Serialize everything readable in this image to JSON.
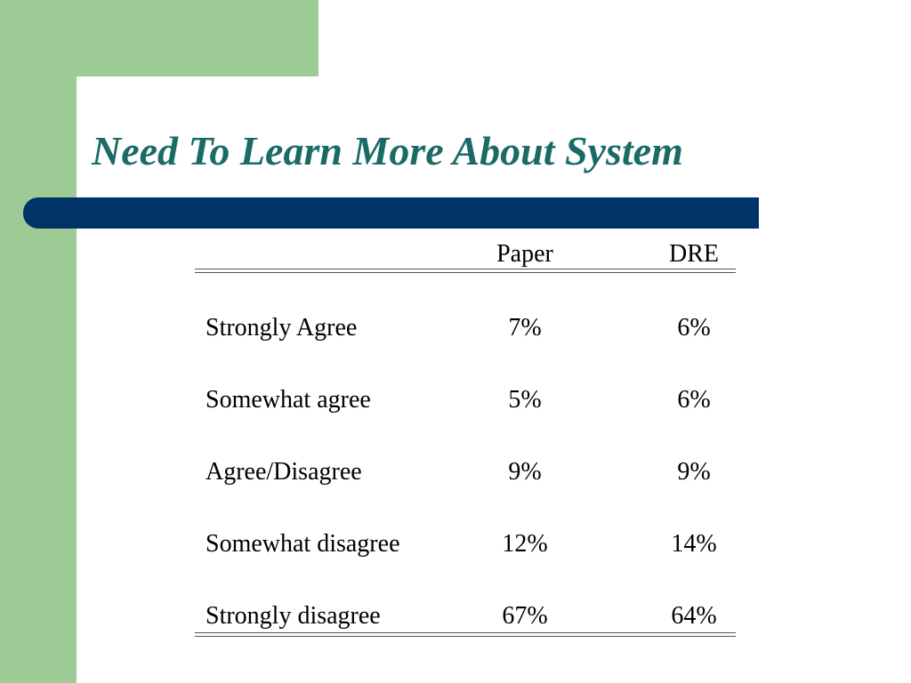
{
  "slide": {
    "title": "Need To Learn More About System",
    "colors": {
      "title": "#1a6b66",
      "bar": "#003366",
      "green": "#9dcb95"
    }
  },
  "chart_data": {
    "type": "table",
    "columns": [
      "Paper",
      "DRE"
    ],
    "rows": [
      {
        "label": "Strongly Agree",
        "values": [
          "7%",
          "6%"
        ]
      },
      {
        "label": "Somewhat agree",
        "values": [
          "5%",
          "6%"
        ]
      },
      {
        "label": "Agree/Disagree",
        "values": [
          "9%",
          "9%"
        ]
      },
      {
        "label": "Somewhat disagree",
        "values": [
          "12%",
          "14%"
        ]
      },
      {
        "label": "Strongly disagree",
        "values": [
          "67%",
          "64%"
        ]
      }
    ]
  }
}
